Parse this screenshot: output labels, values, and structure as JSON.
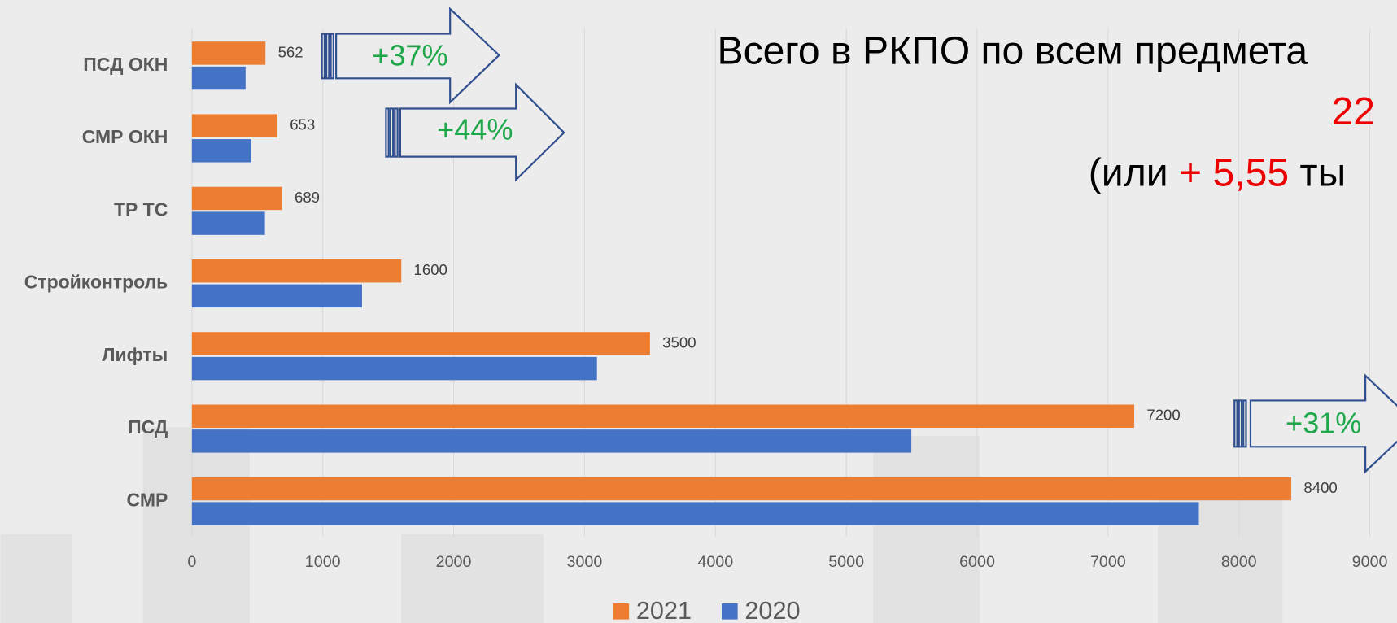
{
  "chart_data": {
    "type": "hbar",
    "categories": [
      "ПСД ОКН",
      "СМР ОКН",
      "ТР ТС",
      "Стройконтроль",
      "Лифты",
      "ПСД",
      "СМР"
    ],
    "series": [
      {
        "name": "2021",
        "color": "#ED7D31",
        "values": [
          562,
          653,
          689,
          1600,
          3500,
          7200,
          8400
        ]
      },
      {
        "name": "2020",
        "color": "#4472C4",
        "values": [
          410,
          453,
          558,
          1300,
          3095,
          5497,
          7694
        ]
      }
    ],
    "xlim": [
      0,
      9000
    ],
    "xticks": [
      0,
      1000,
      2000,
      3000,
      4000,
      5000,
      6000,
      7000,
      8000,
      9000
    ],
    "grid": true,
    "value_labels_series": 0,
    "annotations": {
      "arrows": [
        "+37%",
        "+44%",
        "+31%"
      ],
      "title": "Всего в РКПО по всем предмета",
      "total": "22",
      "note_open": "(или",
      "note_delta": "+ 5,55",
      "note_rest": "ты"
    }
  }
}
